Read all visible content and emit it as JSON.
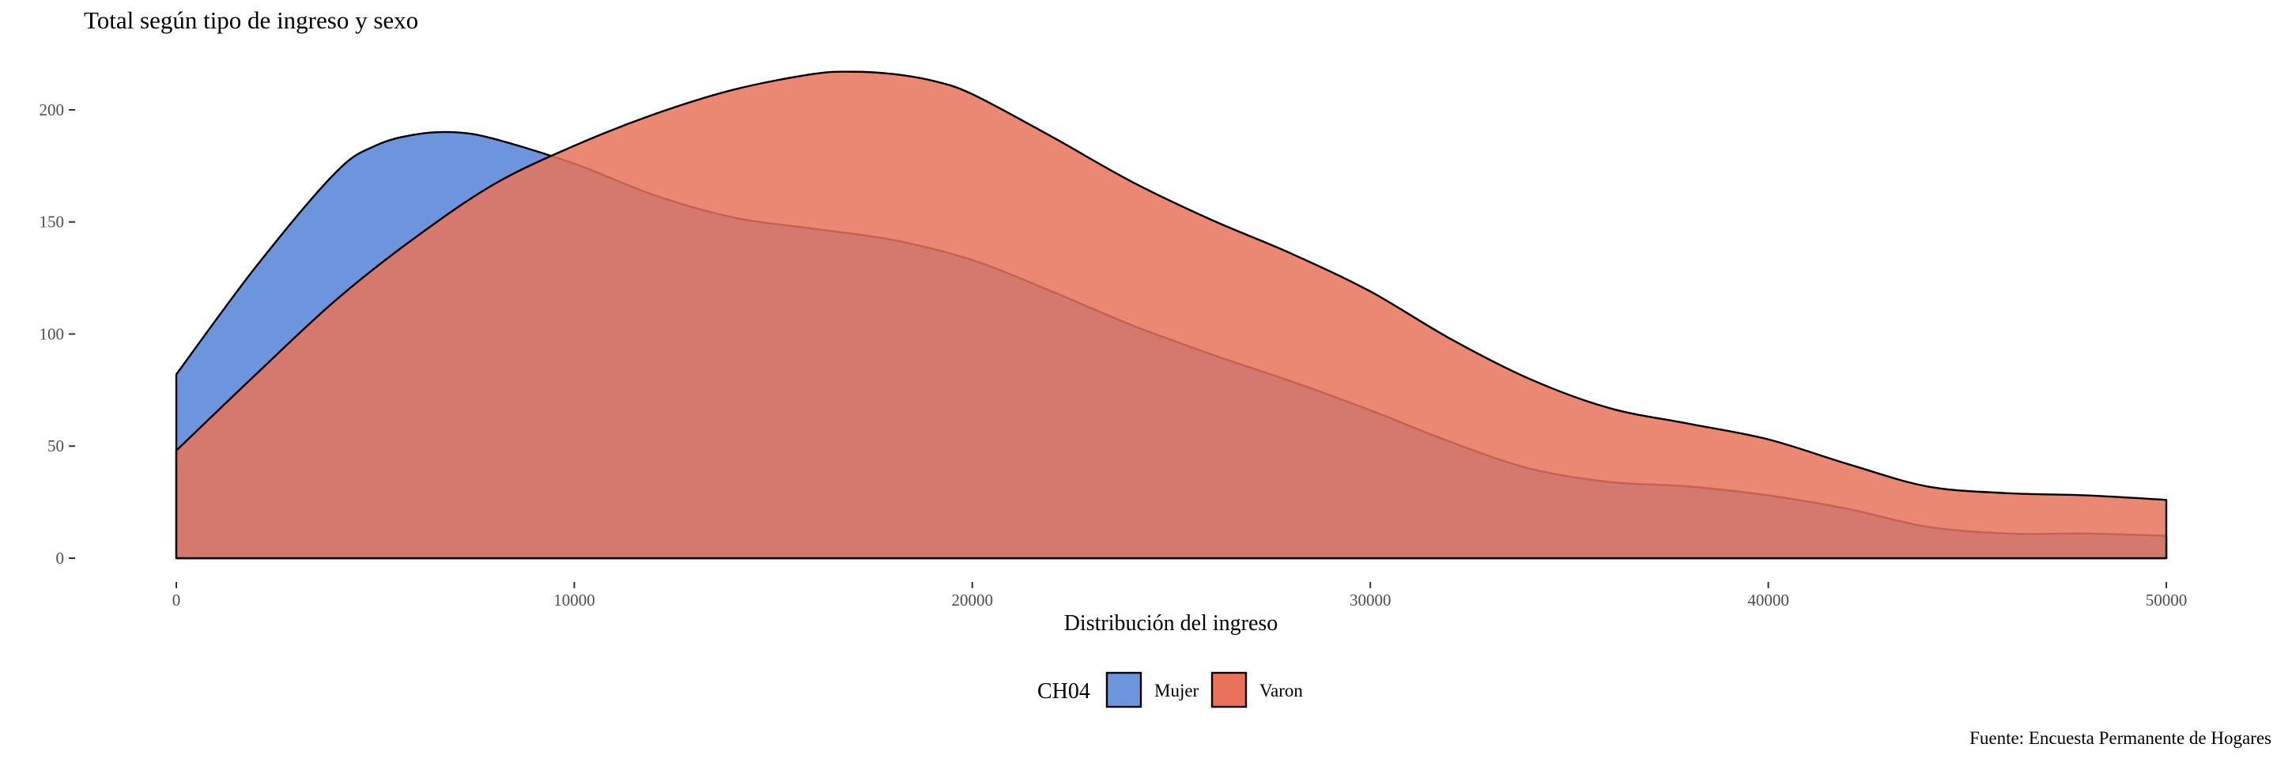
{
  "chart_data": {
    "type": "area",
    "title": "Total según tipo de ingreso y sexo",
    "xlabel": "Distribución del ingreso",
    "ylabel": "",
    "caption": "Fuente: Encuesta Permanente de Hogares",
    "xlim": [
      0,
      50000
    ],
    "ylim": [
      0,
      200
    ],
    "x_ticks": [
      0,
      10000,
      20000,
      30000,
      40000,
      50000
    ],
    "y_ticks": [
      0,
      50,
      100,
      150,
      200
    ],
    "grid": false,
    "legend": {
      "title": "CH04",
      "position": "bottom"
    },
    "series": [
      {
        "name": "Mujer",
        "color": "#6d95de",
        "x": [
          0,
          2000,
          4000,
          5000,
          6000,
          7000,
          8000,
          10000,
          12000,
          14000,
          16000,
          18000,
          20000,
          22000,
          24000,
          26000,
          28000,
          30000,
          32000,
          34000,
          36000,
          38000,
          40000,
          42000,
          44000,
          46000,
          48000,
          50000
        ],
        "values": [
          82,
          130,
          172,
          184,
          189,
          190,
          187,
          176,
          162,
          152,
          147,
          142,
          133,
          119,
          104,
          91,
          79,
          66,
          52,
          40,
          34,
          32,
          28,
          22,
          14,
          11,
          11,
          10
        ]
      },
      {
        "name": "Varon",
        "color": "#e8735a",
        "x": [
          0,
          2000,
          4000,
          6000,
          8000,
          10000,
          12000,
          14000,
          16000,
          17000,
          18000,
          19000,
          20000,
          22000,
          24000,
          26000,
          28000,
          30000,
          32000,
          34000,
          36000,
          38000,
          40000,
          42000,
          44000,
          46000,
          48000,
          50000
        ],
        "values": [
          48,
          82,
          115,
          143,
          167,
          184,
          198,
          209,
          216,
          217,
          216,
          213,
          207,
          188,
          168,
          151,
          136,
          119,
          98,
          80,
          67,
          60,
          53,
          42,
          32,
          29,
          28,
          26
        ]
      }
    ]
  }
}
